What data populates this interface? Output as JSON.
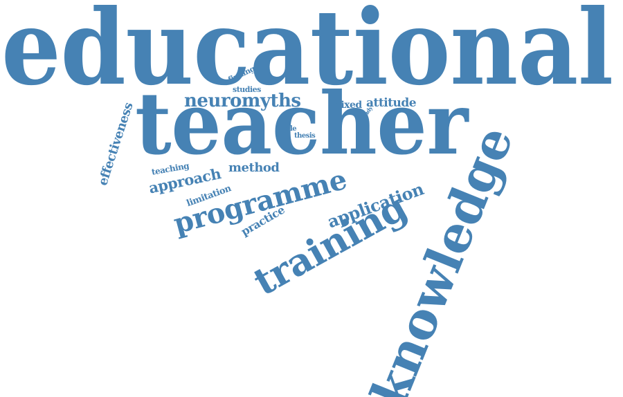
{
  "theme": {
    "word_color": "#4682B4",
    "background": "#ffffff"
  },
  "words": {
    "educational": "educational",
    "teacher": "teacher",
    "knowledge": "knowledge",
    "training": "training",
    "programme": "programme",
    "neuromyths": "neuromyths",
    "application": "application",
    "approach": "approach",
    "method": "method",
    "effectiveness": "effectiveness",
    "mixed": "mixed",
    "attitude": "attitude",
    "practice": "practice",
    "teaching": "teaching",
    "limitation": "limitation",
    "studies": "studies",
    "finding": "finding",
    "role": "role",
    "thesis": "thesis",
    "study": "study"
  }
}
